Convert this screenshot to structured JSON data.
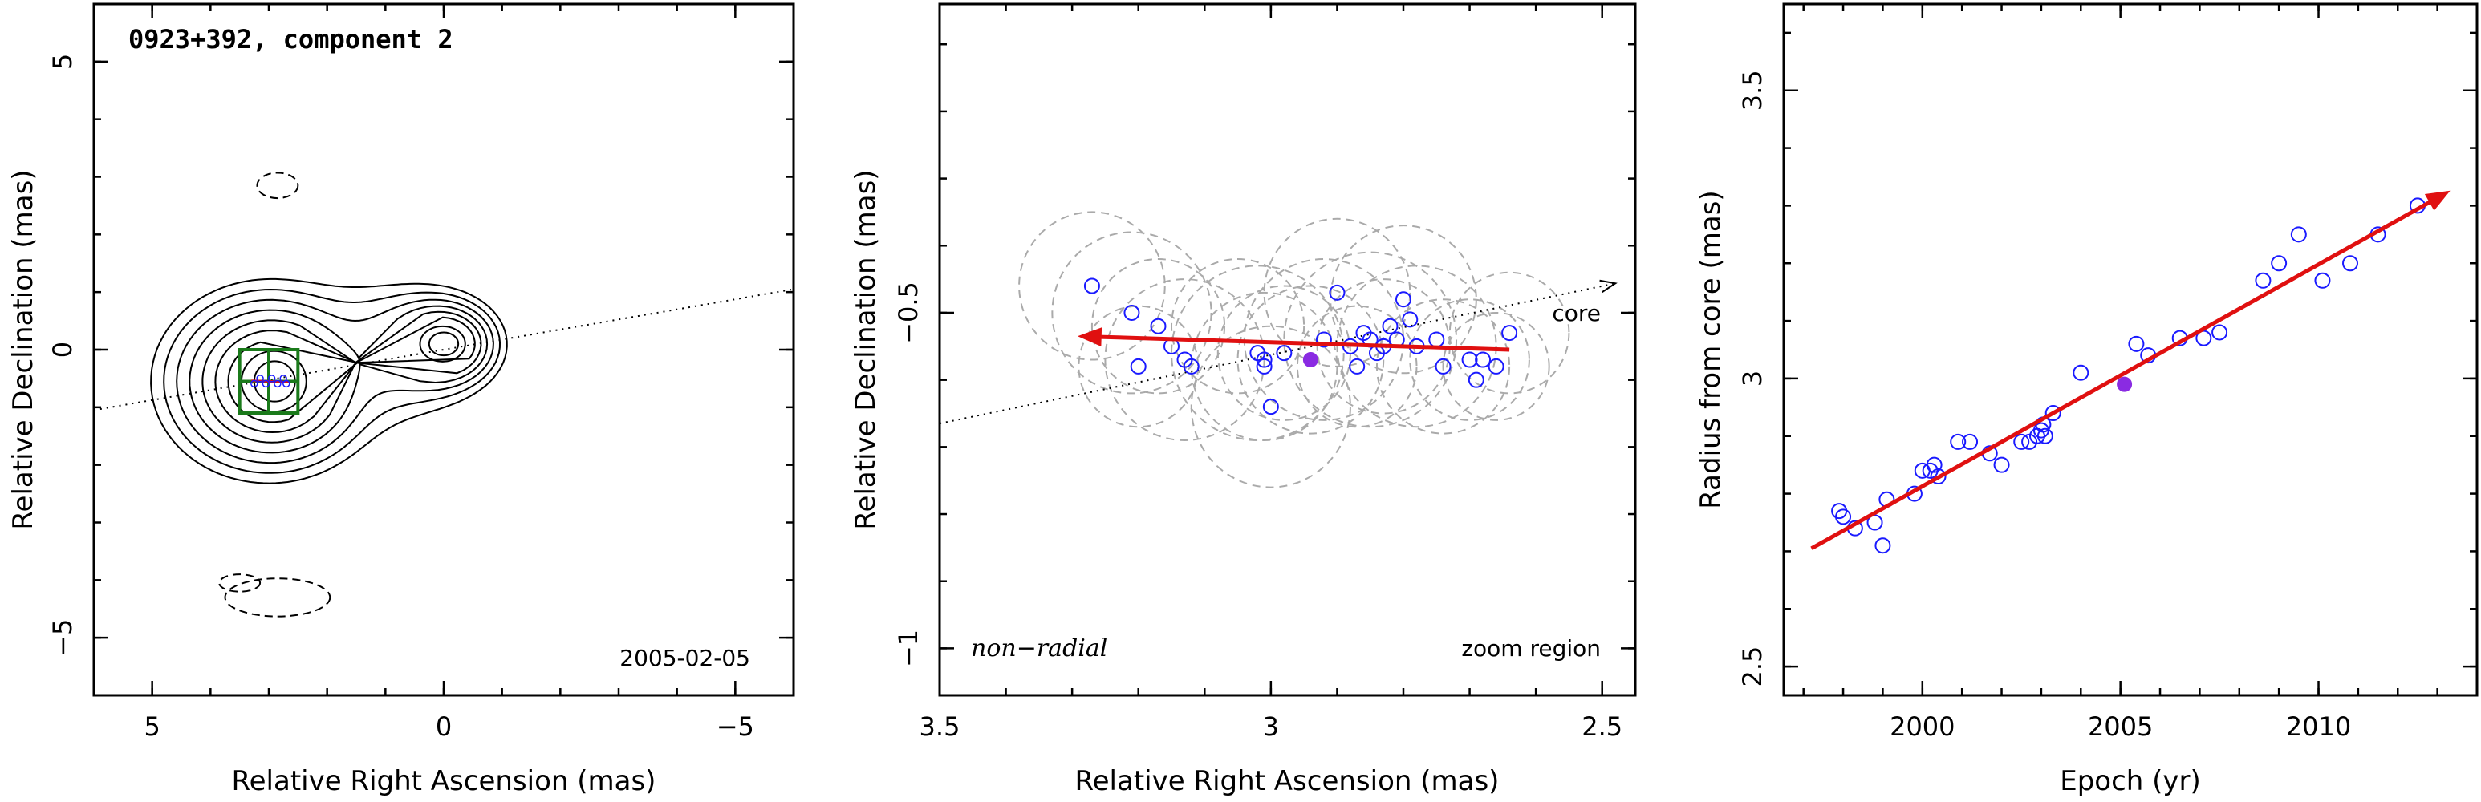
{
  "chart_data": [
    {
      "type": "contour",
      "title": "0923+392, component 2",
      "date_label": "2005-02-05",
      "xlabel": "Relative Right Ascension (mas)",
      "ylabel": "Relative Declination (mas)",
      "xlim": [
        6,
        -6
      ],
      "ylim": [
        -6,
        6
      ],
      "xticks": [
        5,
        0,
        -5
      ],
      "yticks": [
        5,
        0,
        -5
      ],
      "component_position": {
        "x": 2.9,
        "y": -0.55
      },
      "zoom_box": {
        "x_range": [
          3.5,
          2.5
        ],
        "y_range": [
          -1.1,
          0.0
        ]
      },
      "core_direction_line": {
        "x": [
          6,
          -6
        ],
        "y": [
          -1.05,
          1.05
        ]
      },
      "colors": {
        "contour": "#000000",
        "zoom_box": "#1a7a1a",
        "track": "#e01010",
        "points": "#1a1aff"
      }
    },
    {
      "type": "scatter",
      "xlabel": "Relative Right Ascension (mas)",
      "ylabel": "Relative Declination (mas)",
      "xlim": [
        3.5,
        2.45
      ],
      "ylim": [
        -1.07,
        -0.04
      ],
      "xticks": [
        3.5,
        3,
        2.5
      ],
      "yticks": [
        -0.5,
        -1
      ],
      "labels": {
        "core": "core",
        "non_radial": "non−radial",
        "zoom": "zoom region"
      },
      "points": [
        {
          "x": 3.27,
          "y": -0.46
        },
        {
          "x": 3.21,
          "y": -0.5
        },
        {
          "x": 3.17,
          "y": -0.52
        },
        {
          "x": 3.15,
          "y": -0.55
        },
        {
          "x": 3.13,
          "y": -0.57
        },
        {
          "x": 3.12,
          "y": -0.58
        },
        {
          "x": 3.2,
          "y": -0.58
        },
        {
          "x": 3.02,
          "y": -0.56
        },
        {
          "x": 3.01,
          "y": -0.57
        },
        {
          "x": 3.01,
          "y": -0.58
        },
        {
          "x": 2.98,
          "y": -0.56
        },
        {
          "x": 2.92,
          "y": -0.54
        },
        {
          "x": 2.9,
          "y": -0.47
        },
        {
          "x": 2.88,
          "y": -0.55
        },
        {
          "x": 2.87,
          "y": -0.58
        },
        {
          "x": 2.86,
          "y": -0.53
        },
        {
          "x": 2.85,
          "y": -0.54
        },
        {
          "x": 2.84,
          "y": -0.56
        },
        {
          "x": 2.83,
          "y": -0.55
        },
        {
          "x": 2.82,
          "y": -0.52
        },
        {
          "x": 2.81,
          "y": -0.54
        },
        {
          "x": 2.8,
          "y": -0.48
        },
        {
          "x": 2.79,
          "y": -0.51
        },
        {
          "x": 2.78,
          "y": -0.55
        },
        {
          "x": 2.75,
          "y": -0.54
        },
        {
          "x": 2.74,
          "y": -0.58
        },
        {
          "x": 2.7,
          "y": -0.57
        },
        {
          "x": 2.69,
          "y": -0.6
        },
        {
          "x": 2.68,
          "y": -0.57
        },
        {
          "x": 2.66,
          "y": -0.58
        },
        {
          "x": 2.64,
          "y": -0.53
        },
        {
          "x": 3.0,
          "y": -0.64
        }
      ],
      "highlight_point": {
        "x": 2.94,
        "y": -0.57
      },
      "error_circles": [
        {
          "x": 3.27,
          "y": -0.46,
          "r": 0.11
        },
        {
          "x": 3.21,
          "y": -0.5,
          "r": 0.12
        },
        {
          "x": 3.17,
          "y": -0.52,
          "r": 0.1
        },
        {
          "x": 3.13,
          "y": -0.57,
          "r": 0.12
        },
        {
          "x": 3.2,
          "y": -0.58,
          "r": 0.09
        },
        {
          "x": 3.02,
          "y": -0.56,
          "r": 0.13
        },
        {
          "x": 3.01,
          "y": -0.58,
          "r": 0.11
        },
        {
          "x": 2.98,
          "y": -0.56,
          "r": 0.1
        },
        {
          "x": 2.92,
          "y": -0.54,
          "r": 0.12
        },
        {
          "x": 2.9,
          "y": -0.47,
          "r": 0.11
        },
        {
          "x": 2.87,
          "y": -0.58,
          "r": 0.09
        },
        {
          "x": 2.85,
          "y": -0.54,
          "r": 0.13
        },
        {
          "x": 2.83,
          "y": -0.55,
          "r": 0.1
        },
        {
          "x": 2.8,
          "y": -0.48,
          "r": 0.11
        },
        {
          "x": 2.78,
          "y": -0.55,
          "r": 0.12
        },
        {
          "x": 2.74,
          "y": -0.58,
          "r": 0.1
        },
        {
          "x": 2.7,
          "y": -0.57,
          "r": 0.09
        },
        {
          "x": 2.66,
          "y": -0.58,
          "r": 0.08
        },
        {
          "x": 2.64,
          "y": -0.53,
          "r": 0.09
        },
        {
          "x": 3.0,
          "y": -0.64,
          "r": 0.12
        },
        {
          "x": 2.94,
          "y": -0.57,
          "r": 0.11
        },
        {
          "x": 3.05,
          "y": -0.52,
          "r": 0.1
        }
      ],
      "motion_vector": {
        "from": {
          "x": 2.64,
          "y": -0.555
        },
        "to": {
          "x": 3.29,
          "y": -0.535
        }
      },
      "core_direction_line": {
        "x": [
          3.5,
          2.45
        ],
        "y": [
          -0.665,
          -0.45
        ]
      },
      "colors": {
        "points": "#1a1aff",
        "highlight": "#8a2be2",
        "vector": "#e01010",
        "circles": "#aaaaaa"
      }
    },
    {
      "type": "scatter",
      "xlabel": "Epoch (yr)",
      "ylabel": "Radius from core (mas)",
      "xlim": [
        1996.5,
        2014.0
      ],
      "ylim": [
        2.45,
        3.65
      ],
      "xticks": [
        2000,
        2005,
        2010
      ],
      "yticks": [
        2.5,
        3,
        3.5
      ],
      "points": [
        {
          "x": 1997.9,
          "y": 2.77
        },
        {
          "x": 1998.0,
          "y": 2.76
        },
        {
          "x": 1998.3,
          "y": 2.74
        },
        {
          "x": 1998.8,
          "y": 2.75
        },
        {
          "x": 1999.0,
          "y": 2.71
        },
        {
          "x": 1999.1,
          "y": 2.79
        },
        {
          "x": 1999.8,
          "y": 2.8
        },
        {
          "x": 2000.0,
          "y": 2.84
        },
        {
          "x": 2000.2,
          "y": 2.84
        },
        {
          "x": 2000.3,
          "y": 2.85
        },
        {
          "x": 2000.4,
          "y": 2.83
        },
        {
          "x": 2000.9,
          "y": 2.89
        },
        {
          "x": 2001.2,
          "y": 2.89
        },
        {
          "x": 2001.7,
          "y": 2.87
        },
        {
          "x": 2002.0,
          "y": 2.85
        },
        {
          "x": 2002.5,
          "y": 2.89
        },
        {
          "x": 2002.7,
          "y": 2.89
        },
        {
          "x": 2002.9,
          "y": 2.9
        },
        {
          "x": 2003.0,
          "y": 2.91
        },
        {
          "x": 2003.05,
          "y": 2.92
        },
        {
          "x": 2003.1,
          "y": 2.9
        },
        {
          "x": 2003.3,
          "y": 2.94
        },
        {
          "x": 2004.0,
          "y": 3.01
        },
        {
          "x": 2005.4,
          "y": 3.06
        },
        {
          "x": 2005.7,
          "y": 3.04
        },
        {
          "x": 2006.5,
          "y": 3.07
        },
        {
          "x": 2007.1,
          "y": 3.07
        },
        {
          "x": 2007.5,
          "y": 3.08
        },
        {
          "x": 2008.6,
          "y": 3.17
        },
        {
          "x": 2009.0,
          "y": 3.2
        },
        {
          "x": 2009.5,
          "y": 3.25
        },
        {
          "x": 2010.1,
          "y": 3.17
        },
        {
          "x": 2010.8,
          "y": 3.2
        },
        {
          "x": 2011.5,
          "y": 3.25
        },
        {
          "x": 2012.5,
          "y": 3.3
        }
      ],
      "highlight_point": {
        "x": 2005.1,
        "y": 2.99
      },
      "fit_line": {
        "x": [
          1997.2,
          2013.3
        ],
        "y": [
          2.705,
          3.325
        ]
      },
      "colors": {
        "points": "#1a1aff",
        "highlight": "#8a2be2",
        "fit": "#e01010"
      }
    }
  ]
}
